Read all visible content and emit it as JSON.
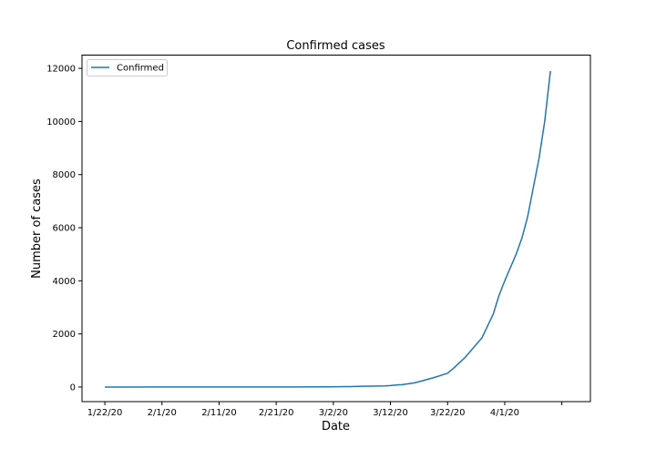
{
  "chart_data": {
    "type": "line",
    "title": "Confirmed cases",
    "xlabel": "Date",
    "ylabel": "Number of cases",
    "x_tick_labels": [
      "1/22/20",
      "2/1/20",
      "2/11/20",
      "2/21/20",
      "3/2/20",
      "3/12/20",
      "3/22/20",
      "4/1/20",
      ""
    ],
    "y_ticks": [
      0,
      2000,
      4000,
      6000,
      8000,
      10000,
      12000
    ],
    "y_tick_labels": [
      "0",
      "2000",
      "4000",
      "6000",
      "8000",
      "10000",
      "12000"
    ],
    "ylim": [
      -550,
      12500
    ],
    "xlim_dates": [
      "2020-01-18",
      "2020-04-16"
    ],
    "grid": false,
    "legend_position": "upper-left",
    "series": [
      {
        "name": "Confirmed",
        "color": "#1f77b4",
        "x": [
          "2020-01-22",
          "2020-01-26",
          "2020-01-31",
          "2020-02-05",
          "2020-02-10",
          "2020-02-15",
          "2020-02-20",
          "2020-02-25",
          "2020-03-01",
          "2020-03-05",
          "2020-03-07",
          "2020-03-09",
          "2020-03-11",
          "2020-03-12",
          "2020-03-13",
          "2020-03-14",
          "2020-03-15",
          "2020-03-16",
          "2020-03-17",
          "2020-03-18",
          "2020-03-19",
          "2020-03-20",
          "2020-03-21",
          "2020-03-22",
          "2020-03-23",
          "2020-03-24",
          "2020-03-25",
          "2020-03-26",
          "2020-03-27",
          "2020-03-28",
          "2020-03-29",
          "2020-03-30",
          "2020-03-31",
          "2020-04-01",
          "2020-04-02",
          "2020-04-03",
          "2020-04-04",
          "2020-04-05",
          "2020-04-06",
          "2020-04-07",
          "2020-04-08",
          "2020-04-09"
        ],
        "values": [
          0,
          0,
          4,
          5,
          5,
          5,
          5,
          5,
          8,
          18,
          30,
          35,
          40,
          55,
          75,
          90,
          120,
          150,
          200,
          260,
          320,
          380,
          450,
          520,
          700,
          900,
          1100,
          1350,
          1600,
          1850,
          2300,
          2750,
          3450,
          4000,
          4500,
          5000,
          5600,
          6400,
          7500,
          8600,
          10000,
          11900
        ]
      }
    ]
  }
}
